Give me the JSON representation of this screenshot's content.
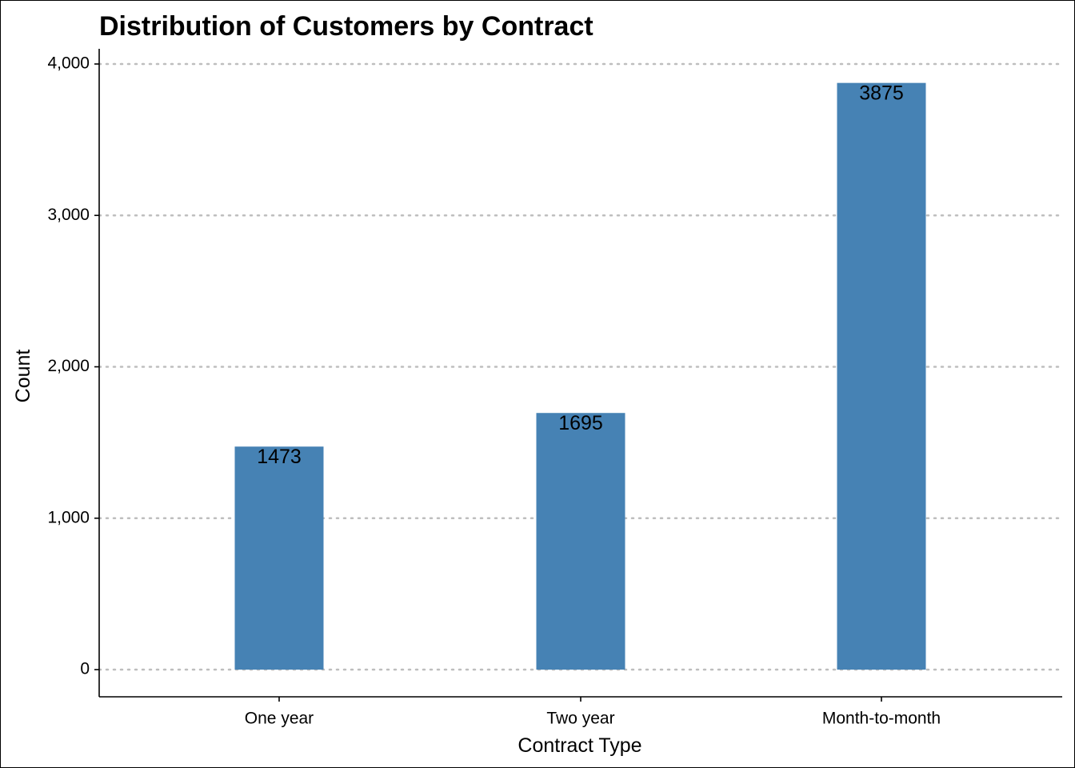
{
  "chart_data": {
    "type": "bar",
    "title": "Distribution of Customers by Contract",
    "xlabel": "Contract Type",
    "ylabel": "Count",
    "categories": [
      "One year",
      "Two year",
      "Month-to-month"
    ],
    "values": [
      1473,
      1695,
      3875
    ],
    "data_labels": [
      "1473",
      "1695",
      "3875"
    ],
    "ylim": [
      0,
      4000
    ],
    "yticks": [
      0,
      1000,
      2000,
      3000,
      4000
    ],
    "ytick_labels": [
      "0",
      "1,000",
      "2,000",
      "3,000",
      "4,000"
    ],
    "grid": "horizontal-dotted",
    "legend": "none",
    "colors": {
      "bar": "#4682B4",
      "grid": "#bebebe",
      "axis": "#000000",
      "text": "#000000"
    }
  }
}
